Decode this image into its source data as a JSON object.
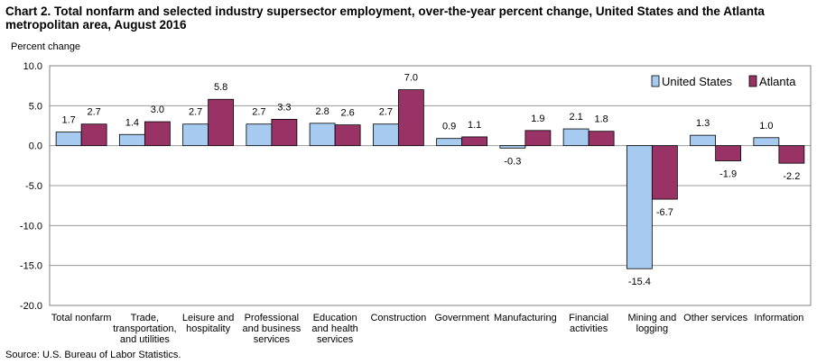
{
  "chart_data": {
    "type": "bar",
    "title": "Chart 2. Total nonfarm and selected industry supersector  employment, over-the-year percent change, United States and the Atlanta metropolitan area, August 2016",
    "ylabel": "Percent change",
    "xlabel": "",
    "ylim": [
      -20,
      10
    ],
    "yticks": [
      10,
      5,
      0,
      -5,
      -10,
      -15,
      -20
    ],
    "ytick_labels": [
      "10.0",
      "5.0",
      "0.0",
      "-5.0",
      "-10.0",
      "-15.0",
      "-20.0"
    ],
    "grid": true,
    "legend_position": "top-right",
    "categories": [
      [
        "Total nonfarm"
      ],
      [
        "Trade,",
        "transportation,",
        "and utilities"
      ],
      [
        "Leisure and",
        "hospitality"
      ],
      [
        "Professional",
        "and business",
        "services"
      ],
      [
        "Education",
        "and health",
        "services"
      ],
      [
        "Construction"
      ],
      [
        "Government"
      ],
      [
        "Manufacturing"
      ],
      [
        "Financial",
        "activities"
      ],
      [
        "Mining and",
        "logging"
      ],
      [
        "Other services"
      ],
      [
        "Information"
      ]
    ],
    "series": [
      {
        "name": "United States",
        "color": "#A6CAF0",
        "values": [
          1.7,
          1.4,
          2.7,
          2.7,
          2.8,
          2.7,
          0.9,
          -0.3,
          2.1,
          -15.4,
          1.3,
          1.0
        ],
        "labels": [
          "1.7",
          "1.4",
          "2.7",
          "2.7",
          "2.8",
          "2.7",
          "0.9",
          "-0.3",
          "2.1",
          "-15.4",
          "1.3",
          "1.0"
        ]
      },
      {
        "name": "Atlanta",
        "color": "#993366",
        "values": [
          2.7,
          3.0,
          5.8,
          3.3,
          2.6,
          7.0,
          1.1,
          1.9,
          1.8,
          -6.7,
          -1.9,
          -2.2
        ],
        "labels": [
          "2.7",
          "3.0",
          "5.8",
          "3.3",
          "2.6",
          "7.0",
          "1.1",
          "1.9",
          "1.8",
          "-6.7",
          "-1.9",
          "-2.2"
        ]
      }
    ]
  },
  "source": "Source: U.S. Bureau of Labor Statistics."
}
